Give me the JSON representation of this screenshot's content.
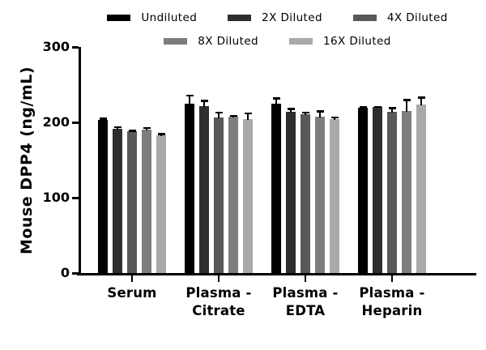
{
  "chart_data": {
    "type": "bar",
    "title": "",
    "ylabel": "Mouse DPP4 (ng/mL)",
    "xlabel": "",
    "ylim": [
      0,
      300
    ],
    "yticks": [
      0,
      100,
      200,
      300
    ],
    "grid": false,
    "legend_position": "top",
    "legend_rows": [
      3,
      2
    ],
    "error_bars": "upper SD whiskers, black",
    "categories": [
      "Serum",
      "Plasma - Citrate",
      "Plasma - EDTA",
      "Plasma - Heparin"
    ],
    "series": [
      {
        "name": "Undiluted",
        "color": "#000000",
        "values": [
          203,
          225,
          225,
          219
        ],
        "errors": [
          3,
          12,
          8,
          2
        ]
      },
      {
        "name": "2X Diluted",
        "color": "#2e2e2e",
        "values": [
          191,
          221,
          214,
          220
        ],
        "errors": [
          4,
          9,
          5,
          2
        ]
      },
      {
        "name": "4X Diluted",
        "color": "#595959",
        "values": [
          188,
          206,
          211,
          214
        ],
        "errors": [
          2,
          8,
          3,
          6
        ]
      },
      {
        "name": "8X Diluted",
        "color": "#7d7d7d",
        "values": [
          190,
          208,
          208,
          215
        ],
        "errors": [
          4,
          2,
          8,
          16
        ]
      },
      {
        "name": "16X Diluted",
        "color": "#a9a9a9",
        "values": [
          183,
          204,
          204,
          224
        ],
        "errors": [
          3,
          9,
          4,
          10
        ]
      }
    ]
  }
}
